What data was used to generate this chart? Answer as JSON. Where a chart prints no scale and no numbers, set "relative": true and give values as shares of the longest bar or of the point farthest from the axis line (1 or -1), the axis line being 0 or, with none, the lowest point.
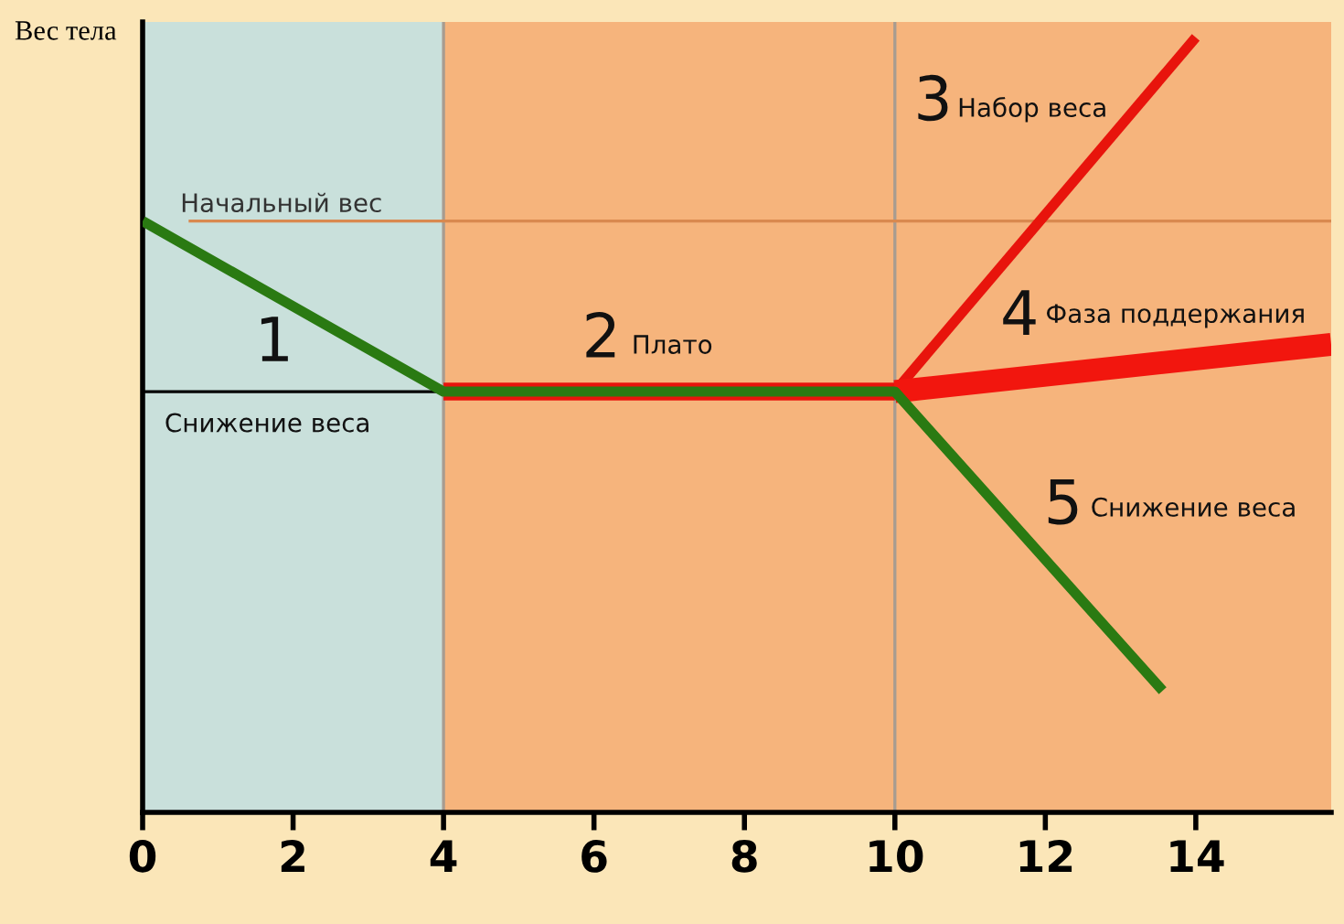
{
  "chart_data": {
    "type": "line",
    "relative": true,
    "ylabel": "Вес тела",
    "xlim": [
      0,
      15.8
    ],
    "xticks": [
      0,
      2,
      4,
      6,
      8,
      10,
      12,
      14
    ],
    "series": [
      {
        "color": "#000000",
        "x": [
          0,
          4
        ],
        "values": [
          0.543,
          0.543
        ]
      },
      {
        "color": "#e8140c",
        "x": [
          4,
          10
        ],
        "values": [
          0.543,
          0.543
        ]
      },
      {
        "color": "#e8140c",
        "x": [
          10,
          14.0
        ],
        "values": [
          0.543,
          1
        ]
      },
      {
        "color": "#f2160e",
        "x": [
          10,
          15.8
        ],
        "values": [
          0.543,
          0.604
        ]
      },
      {
        "color": "#2a7a12",
        "x": [
          0,
          4,
          10,
          13.56
        ],
        "values": [
          0.763,
          0.543,
          0.543,
          0.157
        ]
      }
    ],
    "bands": [
      {
        "axis": "x",
        "from": 0,
        "to": 4,
        "color": "#c9e0db"
      },
      {
        "axis": "x",
        "from": 4,
        "to": 15.8,
        "color": "#f6b47c"
      }
    ],
    "ref_lines": [
      {
        "axis": "x",
        "value": 4,
        "color": "#a89c90"
      },
      {
        "axis": "x",
        "value": 10,
        "color": "#a89c90"
      },
      {
        "axis": "y",
        "value": 0.763,
        "label": "Начальный вес",
        "color": "#d9894f"
      }
    ],
    "annotations": [
      "1",
      "Снижение веса",
      "2",
      "Плато",
      "3",
      "Набор веса",
      "4",
      "Фаза поддержания",
      "5",
      "Снижение веса"
    ]
  }
}
